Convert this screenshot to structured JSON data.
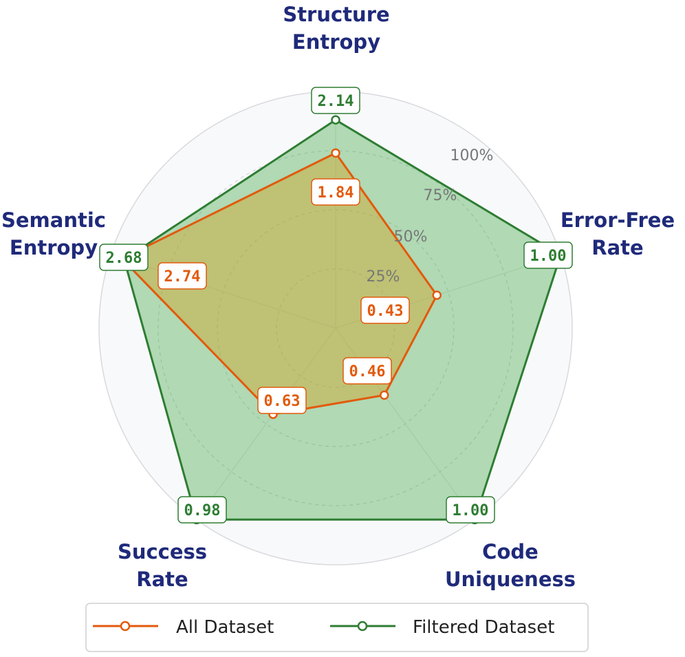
{
  "chart_data": {
    "type": "radar",
    "axes": [
      {
        "label_lines": [
          "Structure",
          "Entropy"
        ]
      },
      {
        "label_lines": [
          "Error-Free",
          "Rate"
        ]
      },
      {
        "label_lines": [
          "Code",
          "Uniqueness"
        ]
      },
      {
        "label_lines": [
          "Success",
          "Rate"
        ]
      },
      {
        "label_lines": [
          "Semantic",
          "Entropy"
        ]
      }
    ],
    "radial_ticks": [
      "25%",
      "50%",
      "75%",
      "100%"
    ],
    "radial_range": [
      0,
      100
    ],
    "grid": true,
    "legend_position": "bottom",
    "series": [
      {
        "name": "All Dataset",
        "color": "#e25a0c",
        "fill": "#d4a020",
        "normalized_percent": [
          74,
          45,
          35,
          45,
          95
        ],
        "value_labels": [
          "1.84",
          "0.43",
          "0.46",
          "0.63",
          "2.74"
        ]
      },
      {
        "name": "Filtered Dataset",
        "color": "#2e7d32",
        "fill": "#4caf50",
        "normalized_percent": [
          88,
          100,
          100,
          100,
          94
        ],
        "value_labels": [
          "2.14",
          "1.00",
          "1.00",
          "0.98",
          "2.68"
        ]
      }
    ]
  }
}
